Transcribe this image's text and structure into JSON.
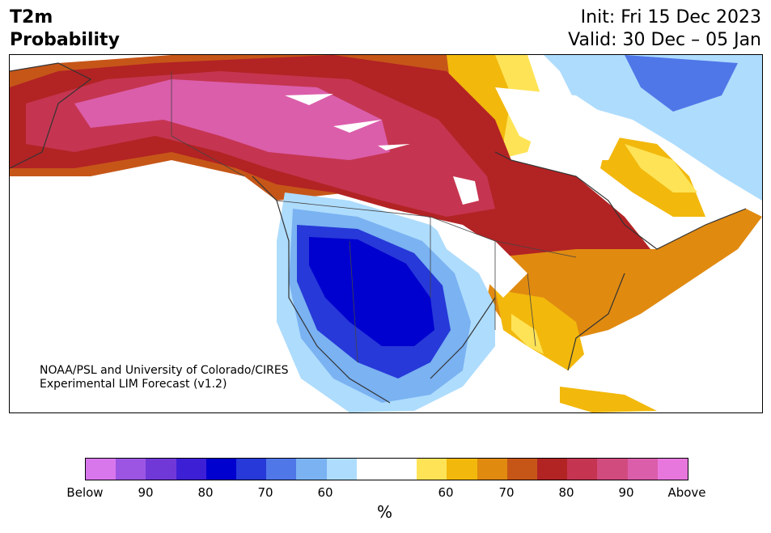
{
  "header": {
    "variable": "T2m",
    "product": "Probability",
    "init": "Init: Fri 15 Dec 2023",
    "valid": "Valid: 30 Dec – 05 Jan"
  },
  "credit": {
    "line1": "NOAA/PSL and University of Colorado/CIRES",
    "line2": "Experimental LIM Forecast (v1.2)"
  },
  "colorbar": {
    "colors": [
      "#d877ec",
      "#9c55e3",
      "#7138d8",
      "#3d1fd6",
      "#0000cf",
      "#2739d8",
      "#5077e8",
      "#7ab2f2",
      "#aedcfd",
      "#ffffff",
      "#ffffff",
      "#fee356",
      "#f2b80c",
      "#e08a10",
      "#c65618",
      "#b22324",
      "#c53551",
      "#d24b7f",
      "#db5eab",
      "#e877dd"
    ],
    "ticks": [
      "Below",
      "90",
      "80",
      "70",
      "60",
      "60",
      "70",
      "80",
      "90",
      "Above"
    ],
    "unit": "%"
  }
}
